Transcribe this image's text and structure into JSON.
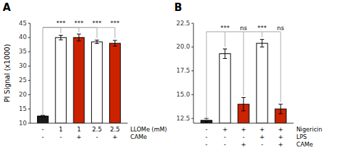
{
  "chart_data": [
    {
      "type": "bar",
      "title": "A",
      "y_label": "PI Signal (x1000)",
      "values": [
        12.5,
        40.0,
        40.0,
        38.5,
        38.0
      ],
      "errors": [
        0.3,
        0.8,
        1.2,
        0.6,
        1.0
      ],
      "colors": [
        "#1a1a1a",
        "#ffffff",
        "#cc2200",
        "#ffffff",
        "#cc2200"
      ],
      "ylim": [
        10,
        45
      ],
      "yticks": [
        10,
        15,
        20,
        25,
        30,
        35,
        40,
        45
      ],
      "x_label_rows": [
        {
          "label": "LLOMe (mM)",
          "labels": [
            "-",
            "1",
            "1",
            "2.5",
            "2.5"
          ]
        },
        {
          "label": "CAMe",
          "labels": [
            "-",
            "-",
            "+",
            "-",
            "+"
          ]
        }
      ],
      "brackets": {
        "top": 43.5,
        "base": 12.5,
        "labels": [
          "***",
          "***",
          "***",
          "***"
        ],
        "color": "#aaaaaa"
      },
      "grid": false
    },
    {
      "type": "bar",
      "title": "B",
      "values": [
        12.3,
        19.3,
        14.0,
        20.4,
        13.5
      ],
      "errors": [
        0.2,
        0.5,
        0.7,
        0.4,
        0.5
      ],
      "colors": [
        "#1a1a1a",
        "#ffffff",
        "#cc2200",
        "#ffffff",
        "#cc2200"
      ],
      "ylim": [
        12.0,
        22.5
      ],
      "yticks": [
        12.5,
        {
          "value": 15.0,
          "label": "15.0"
        },
        17.5,
        {
          "value": 20.0,
          "label": "20.0"
        },
        22.5
      ],
      "x_label_rows": [
        {
          "label": "Nigericin",
          "labels": [
            "-",
            "+",
            "+",
            "+",
            "+"
          ]
        },
        {
          "label": "LPS",
          "labels": [
            "-",
            "-",
            "-",
            "+",
            "+"
          ]
        },
        {
          "label": "CAMe",
          "labels": [
            "-",
            "-",
            "+",
            "-",
            "+"
          ]
        }
      ],
      "brackets": {
        "top": 21.6,
        "base": 12.3,
        "labels": [
          "***",
          "ns",
          "***",
          "ns"
        ],
        "color": "#aaaaaa"
      },
      "grid": false
    }
  ]
}
